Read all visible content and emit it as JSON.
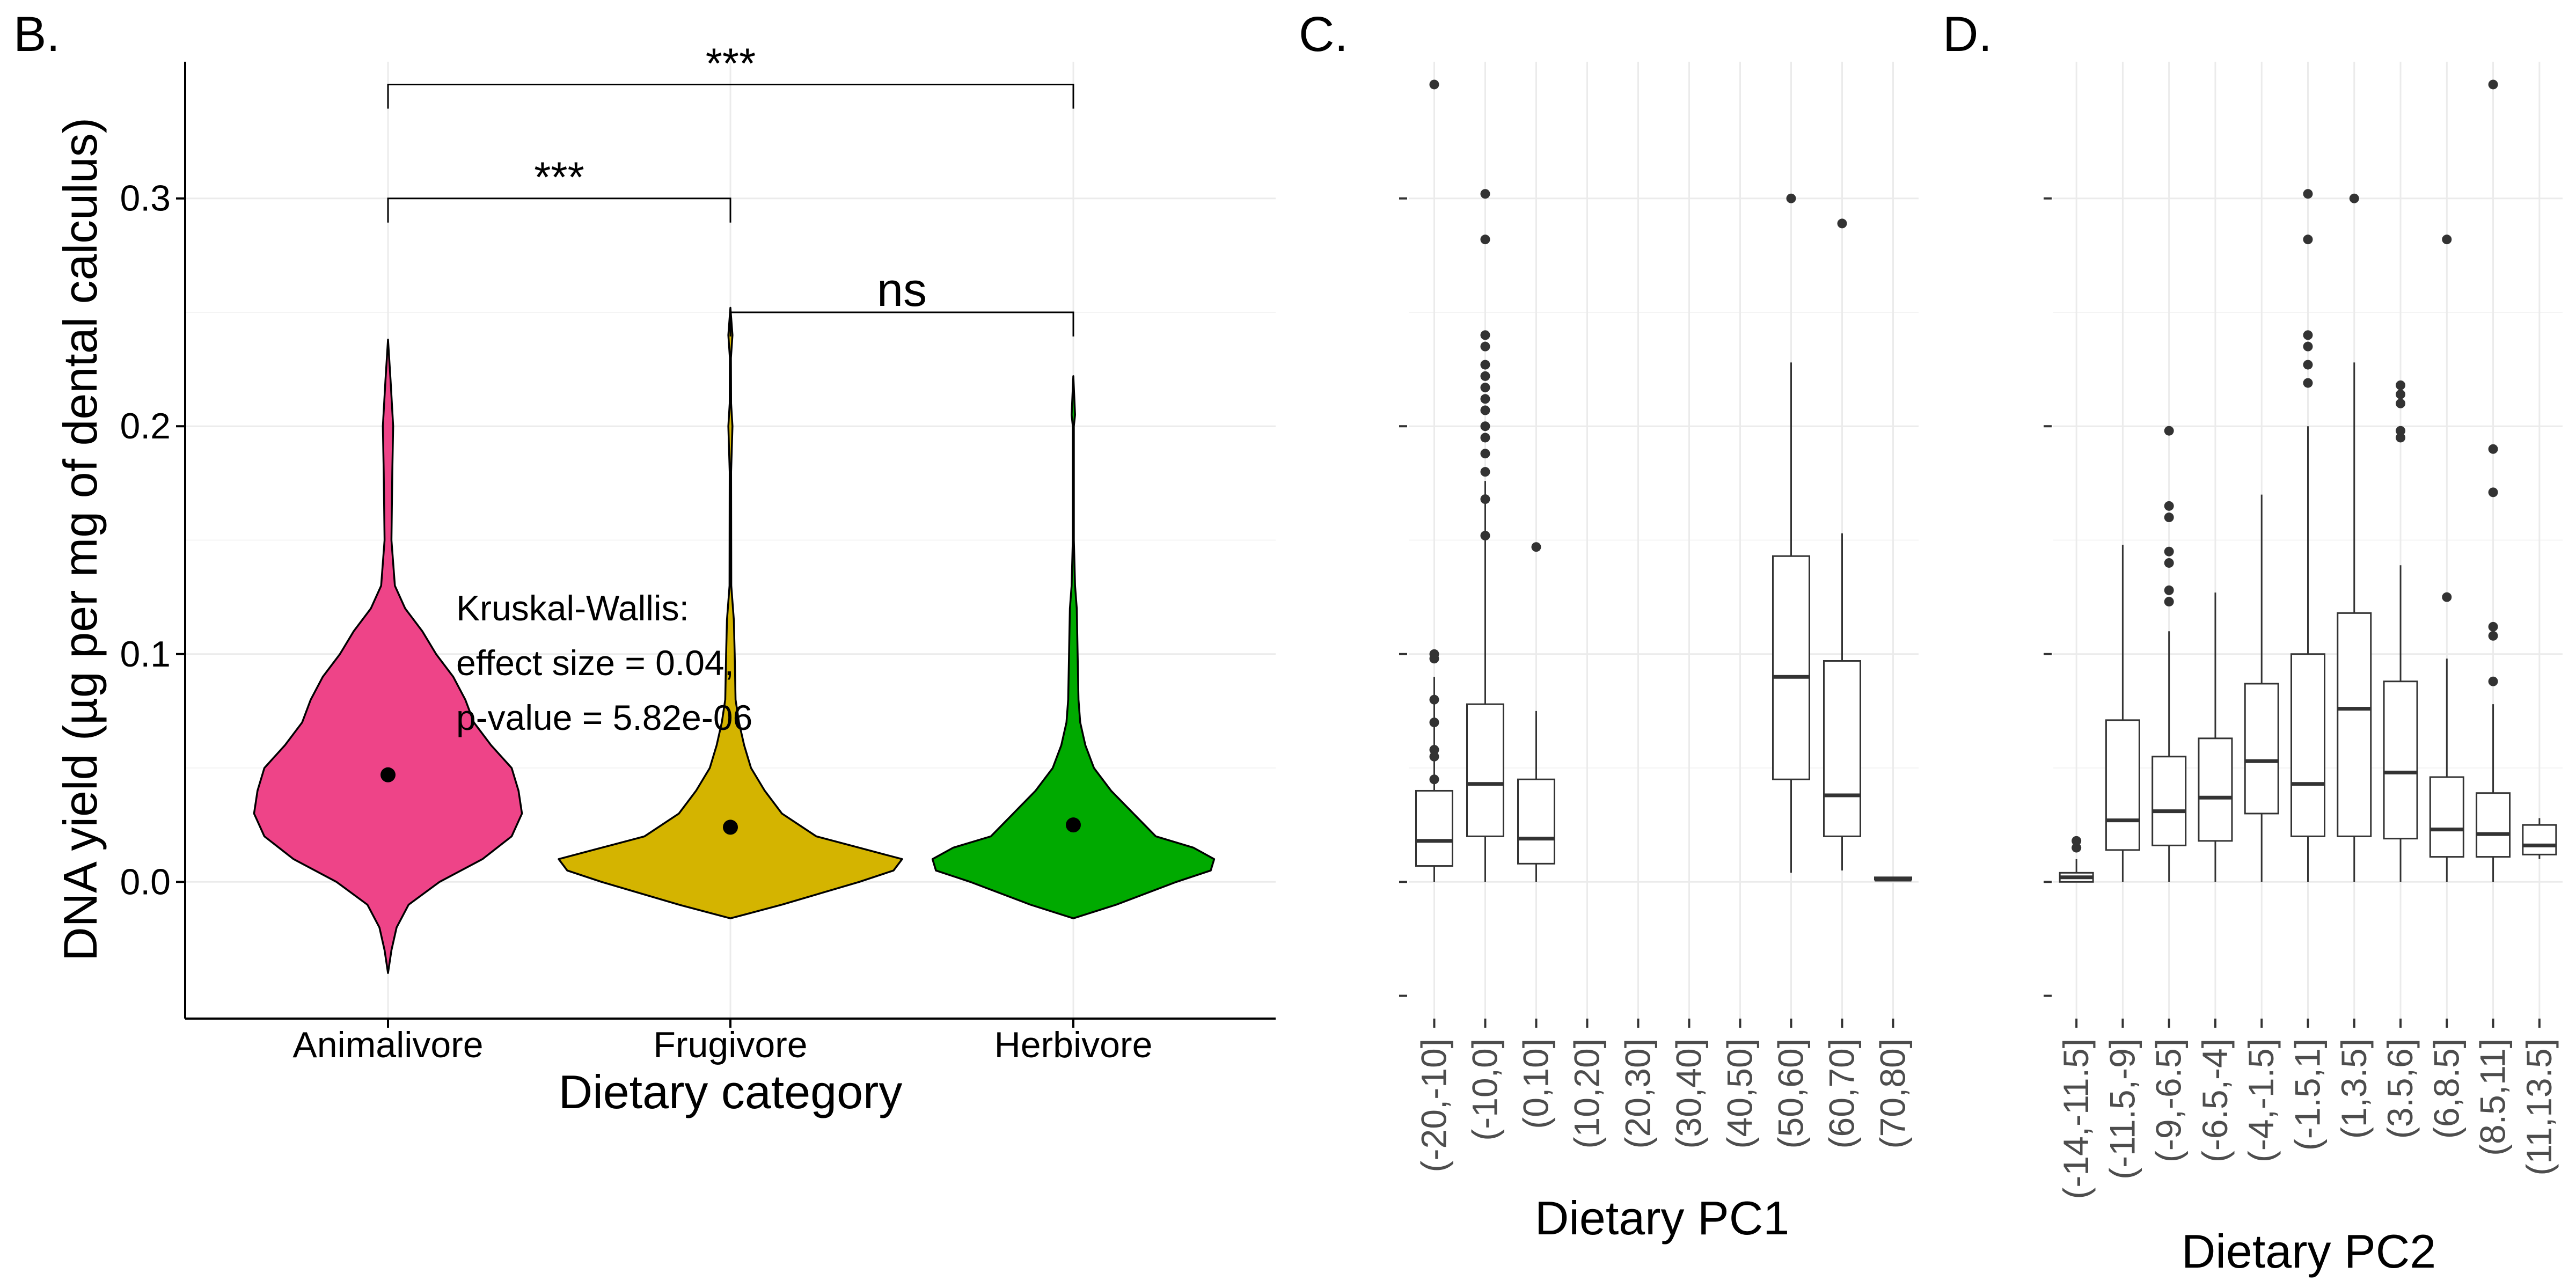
{
  "chart_data": [
    {
      "panel_label": "B.",
      "type": "violin",
      "xlabel": "Dietary category",
      "ylabel": "DNA yield (µg per mg of dental calculus)",
      "categories": [
        "Animalivore",
        "Frugivore",
        "Herbivore"
      ],
      "colors": [
        "#EE4488",
        "#D4B400",
        "#00AA00"
      ],
      "means": [
        0.047,
        0.024,
        0.025
      ],
      "mean_errors": [
        0.003,
        0.002,
        0.002
      ],
      "violin_ranges": [
        [
          -0.04,
          0.238
        ],
        [
          -0.016,
          0.252
        ],
        [
          -0.016,
          0.222
        ]
      ],
      "violin_profiles": [
        [
          [
            -0.04,
            0.0
          ],
          [
            -0.03,
            0.02
          ],
          [
            -0.02,
            0.05
          ],
          [
            -0.01,
            0.12
          ],
          [
            0.0,
            0.3
          ],
          [
            0.01,
            0.55
          ],
          [
            0.02,
            0.72
          ],
          [
            0.03,
            0.78
          ],
          [
            0.04,
            0.76
          ],
          [
            0.05,
            0.72
          ],
          [
            0.06,
            0.6
          ],
          [
            0.07,
            0.5
          ],
          [
            0.08,
            0.45
          ],
          [
            0.09,
            0.38
          ],
          [
            0.1,
            0.28
          ],
          [
            0.11,
            0.2
          ],
          [
            0.12,
            0.1
          ],
          [
            0.13,
            0.04
          ],
          [
            0.15,
            0.02
          ],
          [
            0.18,
            0.025
          ],
          [
            0.2,
            0.03
          ],
          [
            0.22,
            0.015
          ],
          [
            0.238,
            0.0
          ]
        ],
        [
          [
            -0.016,
            0.0
          ],
          [
            -0.01,
            0.3
          ],
          [
            0.0,
            0.75
          ],
          [
            0.005,
            0.95
          ],
          [
            0.01,
            1.0
          ],
          [
            0.015,
            0.75
          ],
          [
            0.02,
            0.5
          ],
          [
            0.03,
            0.3
          ],
          [
            0.04,
            0.2
          ],
          [
            0.05,
            0.12
          ],
          [
            0.06,
            0.08
          ],
          [
            0.07,
            0.05
          ],
          [
            0.08,
            0.03
          ],
          [
            0.1,
            0.025
          ],
          [
            0.115,
            0.02
          ],
          [
            0.13,
            0.005
          ],
          [
            0.18,
            0.004
          ],
          [
            0.2,
            0.012
          ],
          [
            0.21,
            0.004
          ],
          [
            0.23,
            0.003
          ],
          [
            0.24,
            0.012
          ],
          [
            0.252,
            0.0
          ]
        ],
        [
          [
            -0.016,
            0.0
          ],
          [
            -0.01,
            0.25
          ],
          [
            0.0,
            0.6
          ],
          [
            0.005,
            0.8
          ],
          [
            0.01,
            0.82
          ],
          [
            0.015,
            0.7
          ],
          [
            0.02,
            0.48
          ],
          [
            0.03,
            0.35
          ],
          [
            0.04,
            0.22
          ],
          [
            0.05,
            0.12
          ],
          [
            0.06,
            0.07
          ],
          [
            0.07,
            0.04
          ],
          [
            0.08,
            0.03
          ],
          [
            0.1,
            0.025
          ],
          [
            0.12,
            0.02
          ],
          [
            0.13,
            0.01
          ],
          [
            0.15,
            0.003
          ],
          [
            0.2,
            0.003
          ],
          [
            0.205,
            0.01
          ],
          [
            0.222,
            0.0
          ]
        ]
      ],
      "ylim": [
        -0.06,
        0.36
      ],
      "yticks": [
        0.0,
        0.1,
        0.2,
        0.3
      ],
      "ytick_labels": [
        "0.0",
        "0.1",
        "0.2",
        "0.3"
      ],
      "brackets": [
        {
          "from": 0,
          "to": 2,
          "y": 0.35,
          "label": "***"
        },
        {
          "from": 0,
          "to": 1,
          "y": 0.3,
          "label": "***"
        },
        {
          "from": 1,
          "to": 2,
          "y": 0.25,
          "label": "ns"
        }
      ],
      "annotation_lines": [
        "Kruskal-Wallis:",
        "effect size = 0.04,",
        "p-value = 5.82e-06"
      ]
    },
    {
      "panel_label": "C.",
      "type": "box",
      "xlabel": "Dietary PC1",
      "categories": [
        "(-20,-10]",
        "(-10,0]",
        "(0,10]",
        "(10,20]",
        "(20,30]",
        "(30,40]",
        "(40,50]",
        "(50,60]",
        "(60,70]",
        "(70,80]"
      ],
      "ylim": [
        -0.06,
        0.36
      ],
      "yticks": [
        0.0,
        0.1,
        0.2,
        0.3
      ],
      "boxes": [
        {
          "cat": 0,
          "min": 0.0,
          "q1": 0.007,
          "median": 0.018,
          "q3": 0.04,
          "max": 0.09,
          "outliers": [
            0.35,
            0.1,
            0.098,
            0.08,
            0.07,
            0.058,
            0.055,
            0.045
          ]
        },
        {
          "cat": 1,
          "min": 0.0,
          "q1": 0.02,
          "median": 0.043,
          "q3": 0.078,
          "max": 0.176,
          "outliers": [
            0.302,
            0.282,
            0.24,
            0.235,
            0.227,
            0.222,
            0.217,
            0.212,
            0.207,
            0.2,
            0.195,
            0.188,
            0.18,
            0.168,
            0.152
          ]
        },
        {
          "cat": 2,
          "min": 0.0,
          "q1": 0.008,
          "median": 0.019,
          "q3": 0.045,
          "max": 0.075,
          "outliers": [
            0.147
          ]
        },
        {
          "cat": 7,
          "min": 0.004,
          "q1": 0.045,
          "median": 0.09,
          "q3": 0.143,
          "max": 0.228,
          "outliers": [
            0.3
          ]
        },
        {
          "cat": 8,
          "min": 0.005,
          "q1": 0.02,
          "median": 0.038,
          "q3": 0.097,
          "max": 0.153,
          "outliers": [
            0.289
          ]
        },
        {
          "cat": 9,
          "min": 0.001,
          "q1": 0.001,
          "median": 0.001,
          "q3": 0.002,
          "max": 0.002,
          "outliers": []
        }
      ]
    },
    {
      "panel_label": "D.",
      "type": "box",
      "xlabel": "Dietary PC2",
      "categories": [
        "(-14,-11.5]",
        "(-11.5,-9]",
        "(-9,-6.5]",
        "(-6.5,-4]",
        "(-4,-1.5]",
        "(-1.5,1]",
        "(1,3.5]",
        "(3.5,6]",
        "(6,8.5]",
        "(8.5,11]",
        "(11,13.5]"
      ],
      "ylim": [
        -0.06,
        0.36
      ],
      "yticks": [
        0.0,
        0.1,
        0.2,
        0.3
      ],
      "boxes": [
        {
          "cat": 0,
          "min": 0.0,
          "q1": 0.0,
          "median": 0.002,
          "q3": 0.004,
          "max": 0.01,
          "outliers": [
            0.015,
            0.018
          ]
        },
        {
          "cat": 1,
          "min": 0.0,
          "q1": 0.014,
          "median": 0.027,
          "q3": 0.071,
          "max": 0.148,
          "outliers": []
        },
        {
          "cat": 2,
          "min": 0.0,
          "q1": 0.016,
          "median": 0.031,
          "q3": 0.055,
          "max": 0.11,
          "outliers": [
            0.198,
            0.165,
            0.16,
            0.145,
            0.14,
            0.128,
            0.123
          ]
        },
        {
          "cat": 3,
          "min": 0.0,
          "q1": 0.018,
          "median": 0.037,
          "q3": 0.063,
          "max": 0.127,
          "outliers": []
        },
        {
          "cat": 4,
          "min": 0.0,
          "q1": 0.03,
          "median": 0.053,
          "q3": 0.087,
          "max": 0.17,
          "outliers": []
        },
        {
          "cat": 5,
          "min": 0.0,
          "q1": 0.02,
          "median": 0.043,
          "q3": 0.1,
          "max": 0.2,
          "outliers": [
            0.302,
            0.282,
            0.24,
            0.235,
            0.227,
            0.219
          ]
        },
        {
          "cat": 6,
          "min": 0.0,
          "q1": 0.02,
          "median": 0.076,
          "q3": 0.118,
          "max": 0.228,
          "outliers": [
            0.3
          ]
        },
        {
          "cat": 7,
          "min": 0.0,
          "q1": 0.019,
          "median": 0.048,
          "q3": 0.088,
          "max": 0.139,
          "outliers": [
            0.218,
            0.214,
            0.21,
            0.198,
            0.195
          ]
        },
        {
          "cat": 8,
          "min": 0.0,
          "q1": 0.011,
          "median": 0.023,
          "q3": 0.046,
          "max": 0.098,
          "outliers": [
            0.282,
            0.125
          ]
        },
        {
          "cat": 9,
          "min": 0.0,
          "q1": 0.011,
          "median": 0.021,
          "q3": 0.039,
          "max": 0.078,
          "outliers": [
            0.35,
            0.19,
            0.171,
            0.112,
            0.108,
            0.088
          ]
        },
        {
          "cat": 10,
          "min": 0.01,
          "q1": 0.012,
          "median": 0.016,
          "q3": 0.025,
          "max": 0.028,
          "outliers": []
        }
      ]
    }
  ]
}
